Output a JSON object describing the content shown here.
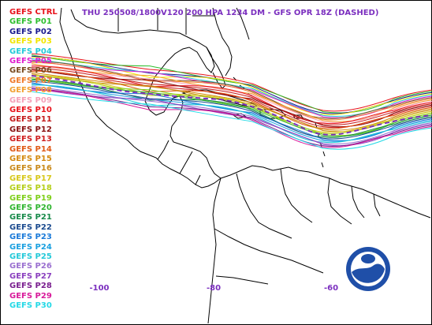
{
  "header": {
    "title": "THU 250508/1800V120  200 HPA 1234 DM - GFS OPR 18Z (DASHED)"
  },
  "legend": [
    {
      "label": "GEFS CTRL",
      "color": "#e8131b"
    },
    {
      "label": "GEFS P01",
      "color": "#2fbf2f"
    },
    {
      "label": "GEFS P02",
      "color": "#1a1a8f"
    },
    {
      "label": "GEFS P03",
      "color": "#f2e600"
    },
    {
      "label": "GEFS P04",
      "color": "#24c9d9"
    },
    {
      "label": "GEFS P05",
      "color": "#e01fd0"
    },
    {
      "label": "GEFS P06",
      "color": "#7a4a1f"
    },
    {
      "label": "GEFS P07",
      "color": "#f07a2a"
    },
    {
      "label": "GEFS P08",
      "color": "#f2a030"
    },
    {
      "label": "GEFS P09",
      "color": "#f5a0b8"
    },
    {
      "label": "GEFS P10",
      "color": "#e8131b"
    },
    {
      "label": "GEFS P11",
      "color": "#c41a1a"
    },
    {
      "label": "GEFS P12",
      "color": "#8a1010"
    },
    {
      "label": "GEFS P13",
      "color": "#cf1e1e"
    },
    {
      "label": "GEFS P14",
      "color": "#e05a16"
    },
    {
      "label": "GEFS P15",
      "color": "#d48a10"
    },
    {
      "label": "GEFS P16",
      "color": "#c98a1a"
    },
    {
      "label": "GEFS P17",
      "color": "#d7c81a"
    },
    {
      "label": "GEFS P18",
      "color": "#b5cf1a"
    },
    {
      "label": "GEFS P19",
      "color": "#7fcf1a"
    },
    {
      "label": "GEFS P20",
      "color": "#2fb52f"
    },
    {
      "label": "GEFS P21",
      "color": "#178a4a"
    },
    {
      "label": "GEFS P22",
      "color": "#1a4a8f"
    },
    {
      "label": "GEFS P23",
      "color": "#1a7ad9"
    },
    {
      "label": "GEFS P24",
      "color": "#1aa0e0"
    },
    {
      "label": "GEFS P25",
      "color": "#24c9d9"
    },
    {
      "label": "GEFS P26",
      "color": "#9a6fd0"
    },
    {
      "label": "GEFS P27",
      "color": "#8a3fbf"
    },
    {
      "label": "GEFS P28",
      "color": "#7a1f8f"
    },
    {
      "label": "GEFS P29",
      "color": "#d81a9a"
    },
    {
      "label": "GEFS P30",
      "color": "#24d9e6"
    }
  ],
  "longitude_labels": [
    "-100",
    "-80",
    "-60"
  ],
  "map": {
    "land_outline_color": "#000000",
    "background_color": "#ffffff",
    "label_color": "#7b2fbf",
    "logo": "noaa-logo"
  }
}
